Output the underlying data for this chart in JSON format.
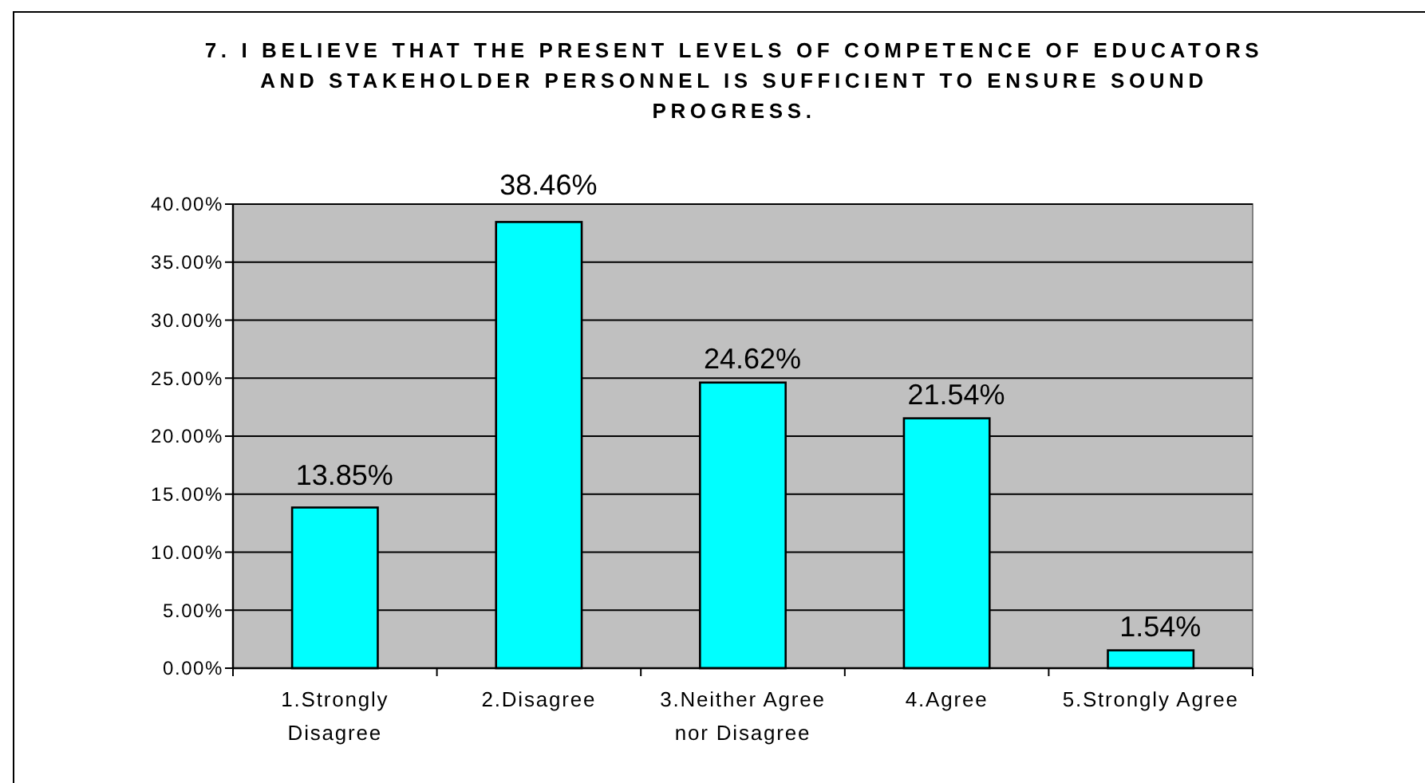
{
  "chart_data": {
    "type": "bar",
    "title": "7. I BELIEVE THAT THE PRESENT LEVELS OF COMPETENCE OF EDUCATORS\nAND STAKEHOLDER PERSONNEL IS SUFFICIENT TO ENSURE SOUND\nPROGRESS.",
    "categories": [
      "1.Strongly Disagree",
      "2.Disagree",
      "3.Neither Agree nor Disagree",
      "4.Agree",
      "5.Strongly Agree"
    ],
    "values": [
      13.85,
      38.46,
      24.62,
      21.54,
      1.54
    ],
    "color": "#00ffff",
    "value_labels": [
      "13.85%",
      "38.46%",
      "24.62%",
      "21.54%",
      "1.54%"
    ],
    "ylim": [
      0,
      40
    ],
    "yticks": [
      {
        "value": 0,
        "label": "0.00%"
      },
      {
        "value": 5,
        "label": "5.00%"
      },
      {
        "value": 10,
        "label": "10.00%"
      },
      {
        "value": 15,
        "label": "15.00%"
      },
      {
        "value": 20,
        "label": "20.00%"
      },
      {
        "value": 25,
        "label": "25.00%"
      },
      {
        "value": 30,
        "label": "30.00%"
      },
      {
        "value": 35,
        "label": "35.00%"
      },
      {
        "value": 40,
        "label": "40.00%"
      }
    ],
    "grid": "y"
  }
}
